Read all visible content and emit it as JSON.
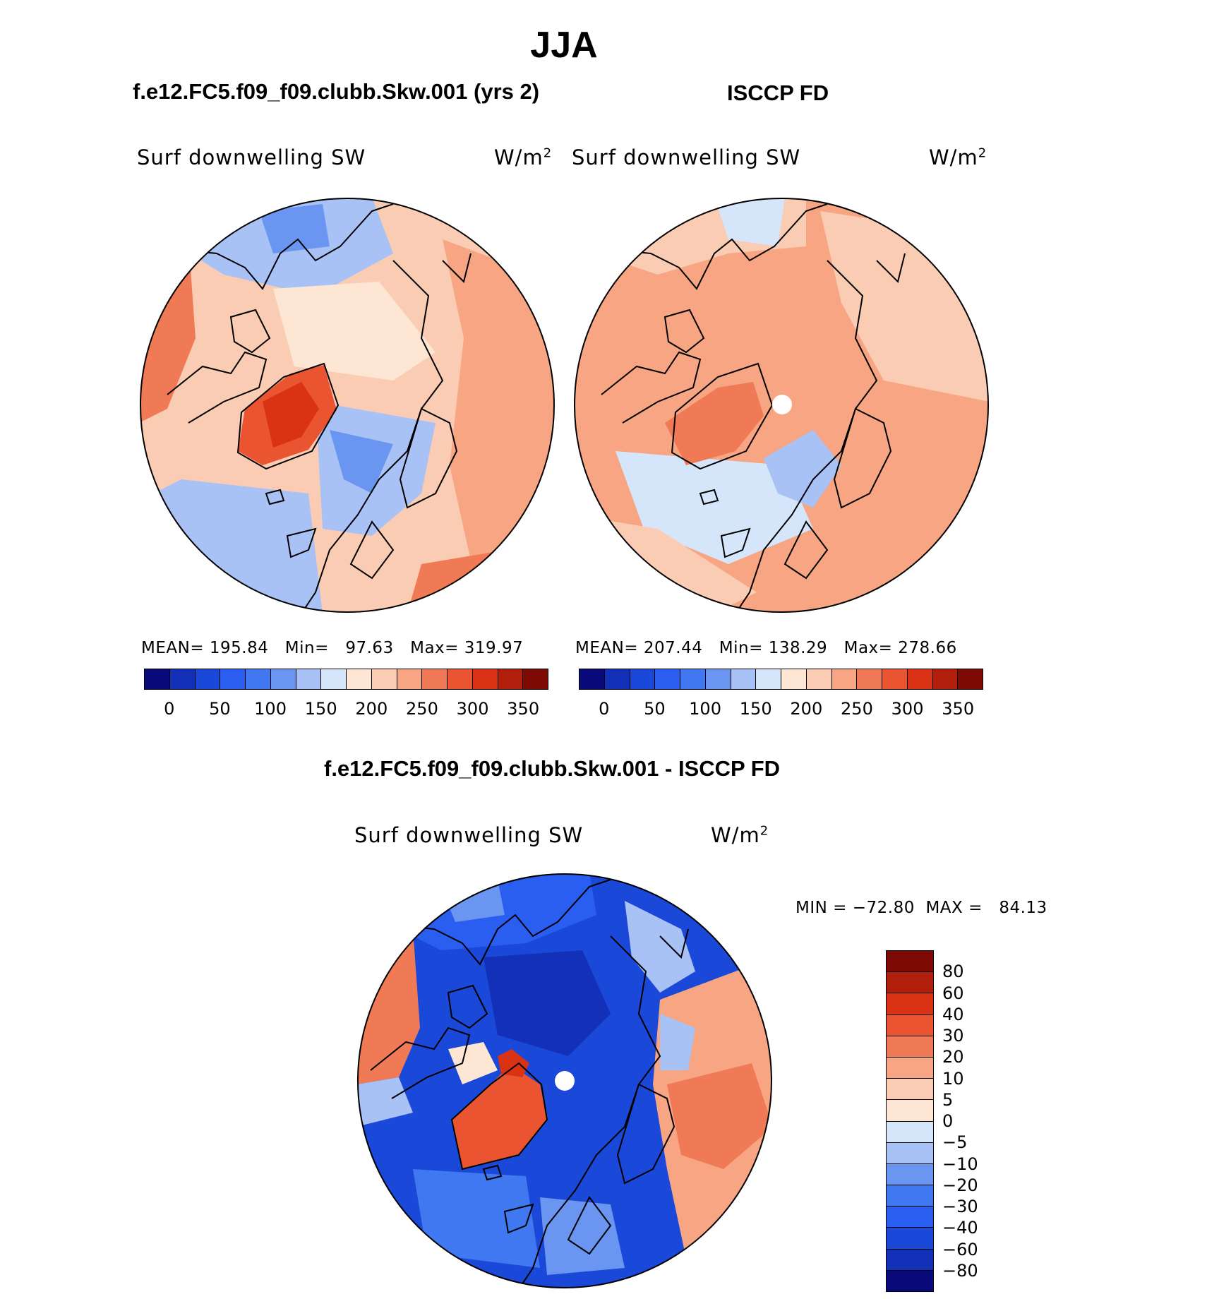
{
  "title": "JJA",
  "panels": {
    "model": {
      "heading": "f.e12.FC5.f09_f09.clubb.Skw.001 (yrs 2)",
      "variable": "Surf downwelling SW",
      "units_base": "W/m",
      "units_exp": "2",
      "stats": "MEAN= 195.84   Min=   97.63   Max= 319.97"
    },
    "obs": {
      "heading": "ISCCP FD",
      "variable": "Surf downwelling SW",
      "units_base": "W/m",
      "units_exp": "2",
      "stats": "MEAN= 207.44   Min= 138.29   Max= 278.66"
    },
    "diff": {
      "heading": "f.e12.FC5.f09_f09.clubb.Skw.001 - ISCCP FD",
      "variable": "Surf downwelling SW",
      "units_base": "W/m",
      "units_exp": "2",
      "stats": "MIN = −72.80  MAX =   84.13"
    }
  },
  "colorbar_abs": {
    "colors": [
      "#0a0a7a",
      "#1230b8",
      "#1a48d8",
      "#2a5ef0",
      "#3f78f0",
      "#6a96f2",
      "#a9c2f5",
      "#d5e6fb",
      "#fde7d4",
      "#fbccb4",
      "#f7a583",
      "#f07a55",
      "#ea5430",
      "#d93215",
      "#b11e0c",
      "#7e0a06"
    ],
    "ticks": [
      "0",
      "50",
      "100",
      "150",
      "200",
      "250",
      "300",
      "350"
    ]
  },
  "colorbar_diff": {
    "colors": [
      "#7e0a06",
      "#b11e0c",
      "#d93215",
      "#ea5430",
      "#f07a55",
      "#f7a583",
      "#fbccb4",
      "#fde7d4",
      "#d5e6fb",
      "#a9c2f5",
      "#6a96f2",
      "#3f78f0",
      "#2a5ef0",
      "#1a48d8",
      "#1230b8",
      "#0a0a7a"
    ],
    "ticks": [
      "80",
      "60",
      "40",
      "30",
      "20",
      "10",
      "5",
      "0",
      "−5",
      "−10",
      "−20",
      "−30",
      "−40",
      "−60",
      "−80"
    ]
  },
  "map_colors": {
    "model_base": "#fbccb4",
    "obs_base": "#f7a583",
    "diff_base": "#1a48d8",
    "coast": "#000000"
  }
}
